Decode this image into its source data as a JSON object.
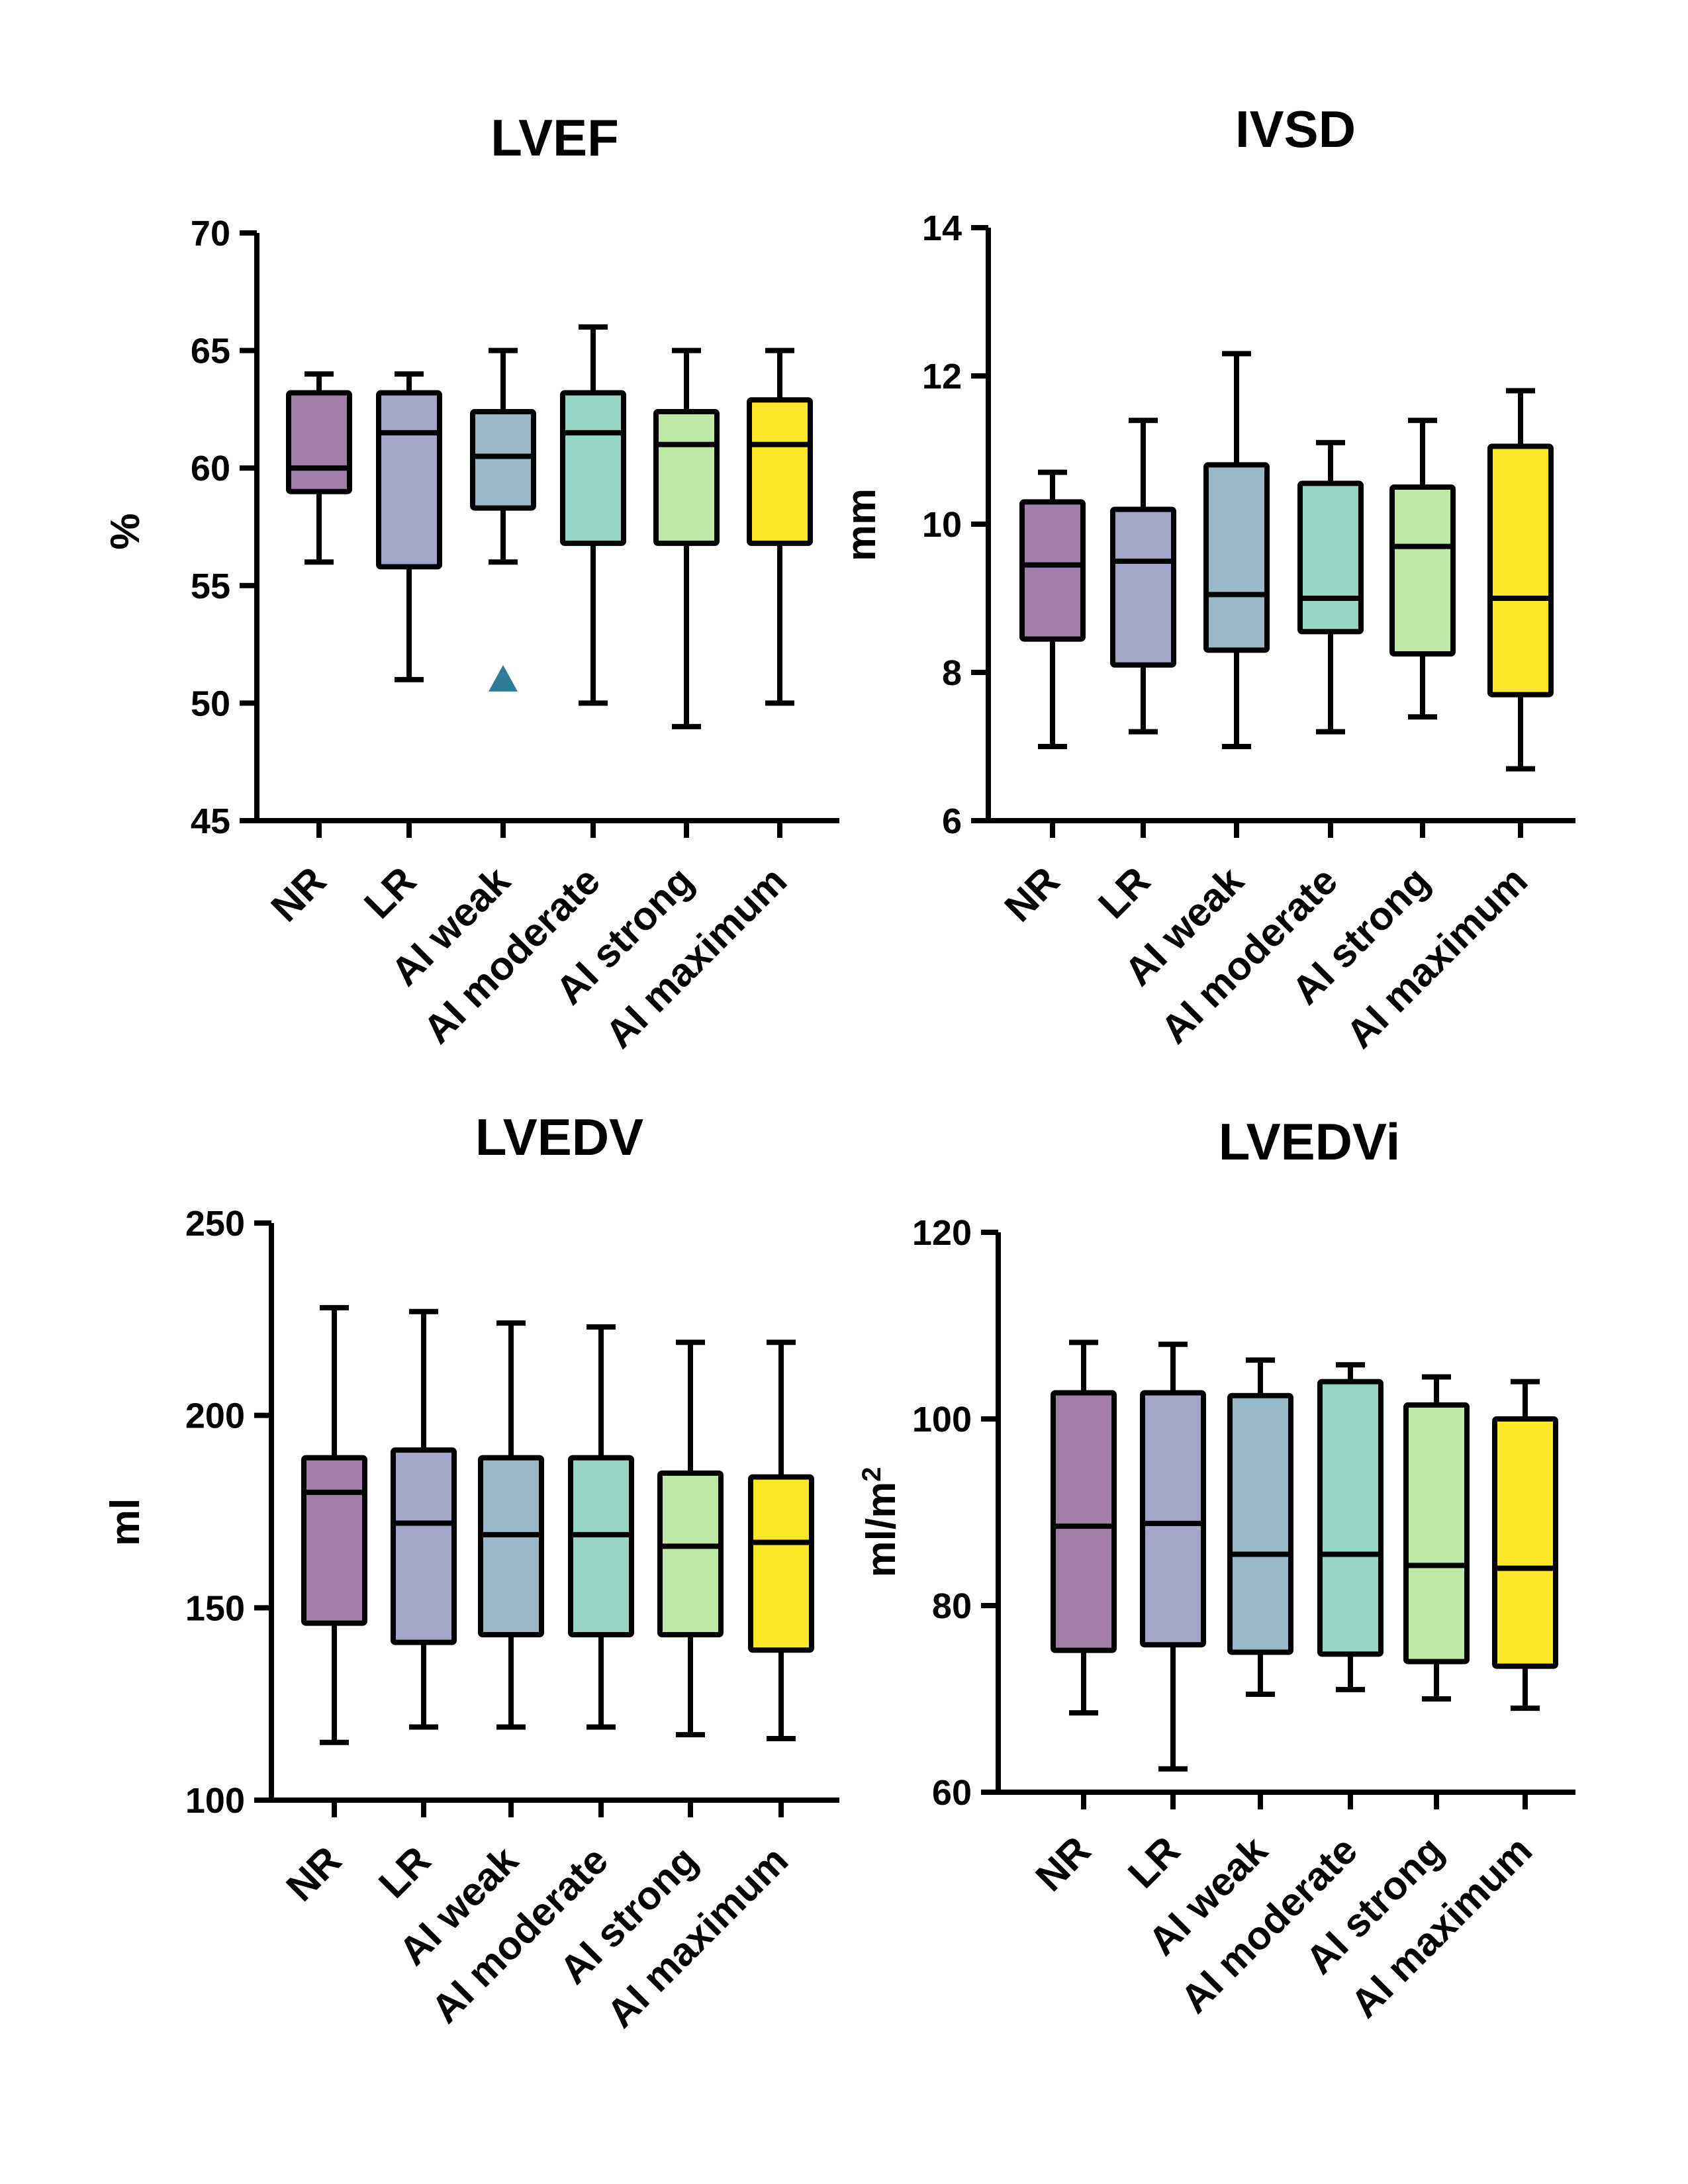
{
  "colors": {
    "NR": "#a27fa8",
    "LR": "#a3a5c9",
    "AI weak": "#98b9c7",
    "AI moderate": "#96d5c3",
    "AI strong": "#bde8a6",
    "AI maximum": "#fbe628",
    "outlier": "#2e7c96",
    "axis": "#000000"
  },
  "chart_data": [
    {
      "type": "boxplot",
      "id": "lvef",
      "title": "LVEF",
      "xlabel": "",
      "ylabel": "%",
      "ylim": [
        45,
        70
      ],
      "yticks": [
        "45",
        "50",
        "55",
        "60",
        "65",
        "70"
      ],
      "categories": [
        "NR",
        "LR",
        "AI weak",
        "AI moderate",
        "AI strong",
        "AI maximum"
      ],
      "boxes": [
        {
          "min": 56,
          "q1": 59,
          "median": 60,
          "q3": 63.2,
          "max": 64
        },
        {
          "min": 51,
          "q1": 55.8,
          "median": 61.5,
          "q3": 63.2,
          "max": 64
        },
        {
          "min": 56,
          "q1": 58.3,
          "median": 60.5,
          "q3": 62.4,
          "max": 65
        },
        {
          "min": 50,
          "q1": 56.8,
          "median": 61.5,
          "q3": 63.2,
          "max": 66
        },
        {
          "min": 49,
          "q1": 56.8,
          "median": 61,
          "q3": 62.4,
          "max": 65
        },
        {
          "min": 50,
          "q1": 56.8,
          "median": 61,
          "q3": 62.9,
          "max": 65
        }
      ],
      "outliers": [
        {
          "category": "AI weak",
          "value": 51
        }
      ]
    },
    {
      "type": "boxplot",
      "id": "ivsd",
      "title": "IVSD",
      "xlabel": "",
      "ylabel": "mm",
      "ylim": [
        6,
        14
      ],
      "yticks": [
        "6",
        "8",
        "10",
        "12",
        "14"
      ],
      "categories": [
        "NR",
        "LR",
        "AI weak",
        "AI moderate",
        "AI strong",
        "AI maximum"
      ],
      "boxes": [
        {
          "min": 7,
          "q1": 8.45,
          "median": 9.45,
          "q3": 10.3,
          "max": 10.7
        },
        {
          "min": 7.2,
          "q1": 8.1,
          "median": 9.5,
          "q3": 10.2,
          "max": 11.4
        },
        {
          "min": 7,
          "q1": 8.3,
          "median": 9.05,
          "q3": 10.8,
          "max": 12.3
        },
        {
          "min": 7.2,
          "q1": 8.55,
          "median": 9.0,
          "q3": 10.55,
          "max": 11.1
        },
        {
          "min": 7.4,
          "q1": 8.25,
          "median": 9.7,
          "q3": 10.5,
          "max": 11.4
        },
        {
          "min": 6.7,
          "q1": 7.7,
          "median": 9.0,
          "q3": 11.05,
          "max": 11.8
        }
      ],
      "outliers": []
    },
    {
      "type": "boxplot",
      "id": "lvedv",
      "title": "LVEDV",
      "xlabel": "",
      "ylabel": "ml",
      "ylim": [
        100,
        250
      ],
      "yticks": [
        "100",
        "150",
        "200",
        "250"
      ],
      "categories": [
        "NR",
        "LR",
        "AI weak",
        "AI moderate",
        "AI strong",
        "AI maximum"
      ],
      "boxes": [
        {
          "min": 115,
          "q1": 146,
          "median": 180,
          "q3": 189,
          "max": 228
        },
        {
          "min": 119,
          "q1": 141,
          "median": 172,
          "q3": 191,
          "max": 227
        },
        {
          "min": 119,
          "q1": 143,
          "median": 169,
          "q3": 189,
          "max": 224
        },
        {
          "min": 119,
          "q1": 143,
          "median": 169,
          "q3": 189,
          "max": 223
        },
        {
          "min": 117,
          "q1": 143,
          "median": 166,
          "q3": 185,
          "max": 219
        },
        {
          "min": 116,
          "q1": 139,
          "median": 167,
          "q3": 184,
          "max": 219
        }
      ],
      "outliers": []
    },
    {
      "type": "boxplot",
      "id": "lvedvi",
      "title": "LVEDVi",
      "xlabel": "",
      "ylabel": "ml/m",
      "ylabel_sup": "2",
      "ylim": [
        60,
        120
      ],
      "yticks": [
        "60",
        "80",
        "100",
        "120"
      ],
      "categories": [
        "NR",
        "LR",
        "AI weak",
        "AI moderate",
        "AI strong",
        "AI maximum"
      ],
      "boxes": [
        {
          "min": 68.5,
          "q1": 75.2,
          "median": 88.5,
          "q3": 102.8,
          "max": 108.2
        },
        {
          "min": 62.5,
          "q1": 75.8,
          "median": 88.8,
          "q3": 102.8,
          "max": 108.0
        },
        {
          "min": 70.5,
          "q1": 75.0,
          "median": 85.5,
          "q3": 102.5,
          "max": 106.3
        },
        {
          "min": 71.0,
          "q1": 74.8,
          "median": 85.5,
          "q3": 104.0,
          "max": 105.8
        },
        {
          "min": 70.0,
          "q1": 74.0,
          "median": 84.3,
          "q3": 101.5,
          "max": 104.5
        },
        {
          "min": 69.0,
          "q1": 73.5,
          "median": 84.0,
          "q3": 100.0,
          "max": 104.0
        }
      ],
      "outliers": []
    }
  ]
}
